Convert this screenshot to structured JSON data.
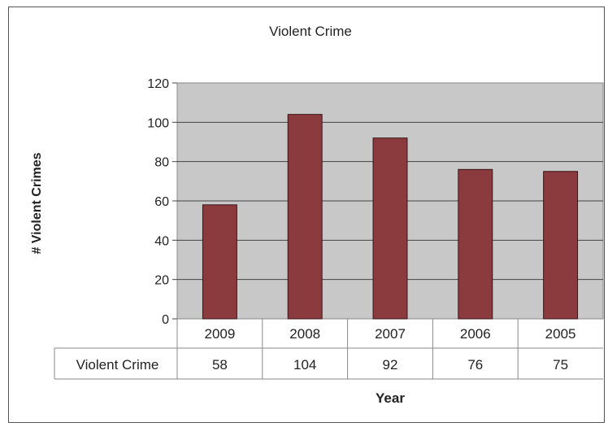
{
  "chart_data": {
    "type": "bar",
    "title": "Violent Crime",
    "xlabel": "Year",
    "ylabel": "# Violent Crimes",
    "categories": [
      "2009",
      "2008",
      "2007",
      "2006",
      "2005"
    ],
    "series": [
      {
        "name": "Violent Crime",
        "values": [
          58,
          104,
          92,
          76,
          75
        ]
      }
    ],
    "ylim": [
      0,
      120
    ],
    "yticks": [
      0,
      20,
      40,
      60,
      80,
      100,
      120
    ],
    "grid": true,
    "legend": "none",
    "data_table": true,
    "colors": {
      "bar": "#8b3a3e",
      "plot_bg": "#c8c8c8"
    }
  }
}
